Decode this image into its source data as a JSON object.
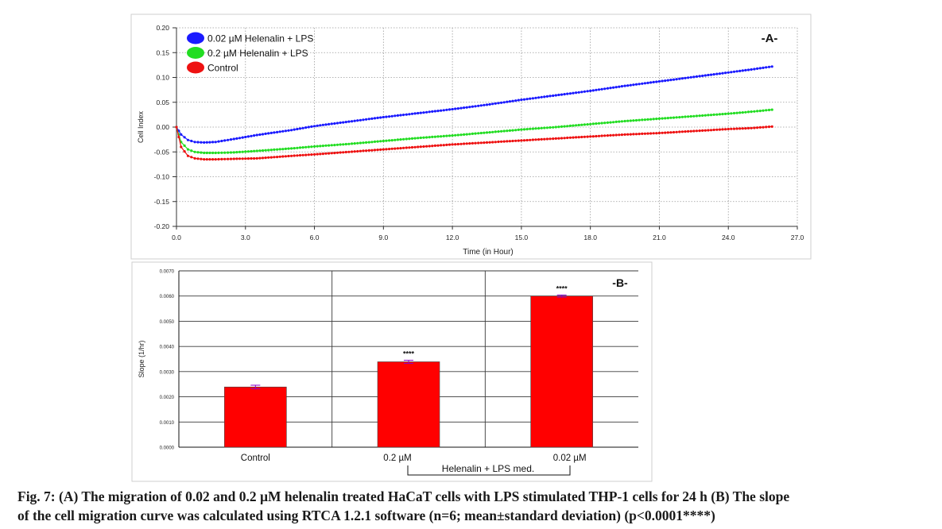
{
  "chart_data": [
    {
      "type": "line",
      "panel_label": "-A-",
      "xlabel": "Time (in Hour)",
      "ylabel": "Cell Index",
      "xlim": [
        0,
        27
      ],
      "ylim": [
        -0.2,
        0.2
      ],
      "x_ticks": [
        "0.0",
        "3.0",
        "6.0",
        "9.0",
        "12.0",
        "15.0",
        "18.0",
        "21.0",
        "24.0",
        "27.0"
      ],
      "y_ticks": [
        "0.20",
        "0.15",
        "0.10",
        "0.05",
        "0.00",
        "-0.05",
        "-0.10",
        "-0.15",
        "-0.20"
      ],
      "grid": true,
      "legend_position": "top-left",
      "series": [
        {
          "name": "0.02 µM Helenalin + LPS",
          "color": "#1a1aff",
          "x": [
            0,
            0.2,
            0.5,
            0.8,
            1.2,
            1.7,
            2.5,
            3.5,
            5,
            6,
            7.5,
            9,
            10.5,
            12,
            13.5,
            15,
            16.5,
            18,
            19.5,
            21,
            22.5,
            24,
            25,
            25.9
          ],
          "y": [
            0.0,
            -0.015,
            -0.026,
            -0.03,
            -0.031,
            -0.03,
            -0.024,
            -0.016,
            -0.006,
            0.002,
            0.011,
            0.02,
            0.028,
            0.036,
            0.045,
            0.055,
            0.064,
            0.073,
            0.083,
            0.092,
            0.101,
            0.11,
            0.116,
            0.122
          ]
        },
        {
          "name": "0.2 µM Helenalin + LPS",
          "color": "#22dd22",
          "x": [
            0,
            0.2,
            0.5,
            0.8,
            1.2,
            1.7,
            2.5,
            3.5,
            5,
            6,
            7.5,
            9,
            10.5,
            12,
            13.5,
            15,
            16.5,
            18,
            19.5,
            21,
            22.5,
            24,
            25,
            25.9
          ],
          "y": [
            0.0,
            -0.03,
            -0.045,
            -0.05,
            -0.052,
            -0.052,
            -0.051,
            -0.048,
            -0.043,
            -0.039,
            -0.034,
            -0.028,
            -0.022,
            -0.017,
            -0.011,
            -0.005,
            0.0,
            0.006,
            0.012,
            0.017,
            0.022,
            0.027,
            0.031,
            0.035
          ]
        },
        {
          "name": "Control",
          "color": "#ee1111",
          "x": [
            0,
            0.2,
            0.5,
            0.8,
            1.2,
            1.7,
            2.5,
            3.5,
            5,
            6,
            7.5,
            9,
            10.5,
            12,
            13.5,
            15,
            16.5,
            18,
            19.5,
            21,
            22.5,
            24,
            25,
            25.9
          ],
          "y": [
            0.0,
            -0.04,
            -0.058,
            -0.063,
            -0.065,
            -0.065,
            -0.064,
            -0.063,
            -0.058,
            -0.055,
            -0.05,
            -0.045,
            -0.04,
            -0.035,
            -0.031,
            -0.027,
            -0.023,
            -0.019,
            -0.015,
            -0.012,
            -0.008,
            -0.004,
            -0.002,
            0.001
          ]
        }
      ]
    },
    {
      "type": "bar",
      "panel_label": "-B-",
      "xlabel": "",
      "ylabel": "Slope (1/hr)",
      "ylim": [
        0,
        0.007
      ],
      "y_ticks": [
        "0.0070",
        "0.0060",
        "0.0050",
        "0.0040",
        "0.0030",
        "0.0020",
        "0.0010",
        "0.0000"
      ],
      "grid": true,
      "categories": [
        "Control",
        "0.2 µM",
        "0.02 µM"
      ],
      "values": [
        0.00239,
        0.00339,
        0.006
      ],
      "errors": [
        7e-05,
        6e-05,
        4e-05
      ],
      "significance": [
        "",
        "****",
        "****"
      ],
      "bar_color": "#ff0000",
      "error_color": "#8800cc",
      "group_label": "Helenalin + LPS med."
    }
  ],
  "caption": {
    "line1": "Fig. 7: (A) The migration of 0.02 and 0.2 µM helenalin treated HaCaT cells with LPS stimulated THP-1 cells for 24 h (B) The slope",
    "line2": "of the cell migration curve was calculated using RTCA 1.2.1 software (n=6; mean±standard deviation) (p<0.0001****)"
  }
}
